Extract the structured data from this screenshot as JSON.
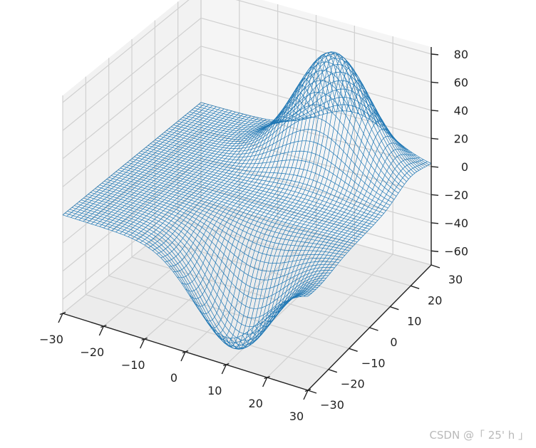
{
  "chart_data": {
    "type": "surface-wireframe-3d",
    "title": "",
    "xlabel": "",
    "ylabel": "",
    "zlabel": "",
    "xlim": [
      -30,
      30
    ],
    "ylim": [
      -30,
      30
    ],
    "zlim": [
      -70,
      85
    ],
    "x_ticks": [
      "−30",
      "−20",
      "−10",
      "0",
      "10",
      "20",
      "30"
    ],
    "y_ticks": [
      "−30",
      "−20",
      "−10",
      "0",
      "10",
      "20",
      "30"
    ],
    "z_ticks": [
      "−60",
      "−40",
      "−20",
      "0",
      "20",
      "40",
      "60",
      "80"
    ],
    "grid": true,
    "wire_color": "#1f77b4",
    "surface_samples": {
      "description_values": "z ≈ 80 peak near (x=10, y=20); z ≈ −65 trough near (x=10, y=−25); flat z ≈ 0 elsewhere",
      "peak": {
        "x": 10,
        "y": 20,
        "z": 80
      },
      "trough": {
        "x": 10,
        "y": -25,
        "z": -65
      }
    }
  },
  "watermark": "CSDN @「 25' h 」"
}
